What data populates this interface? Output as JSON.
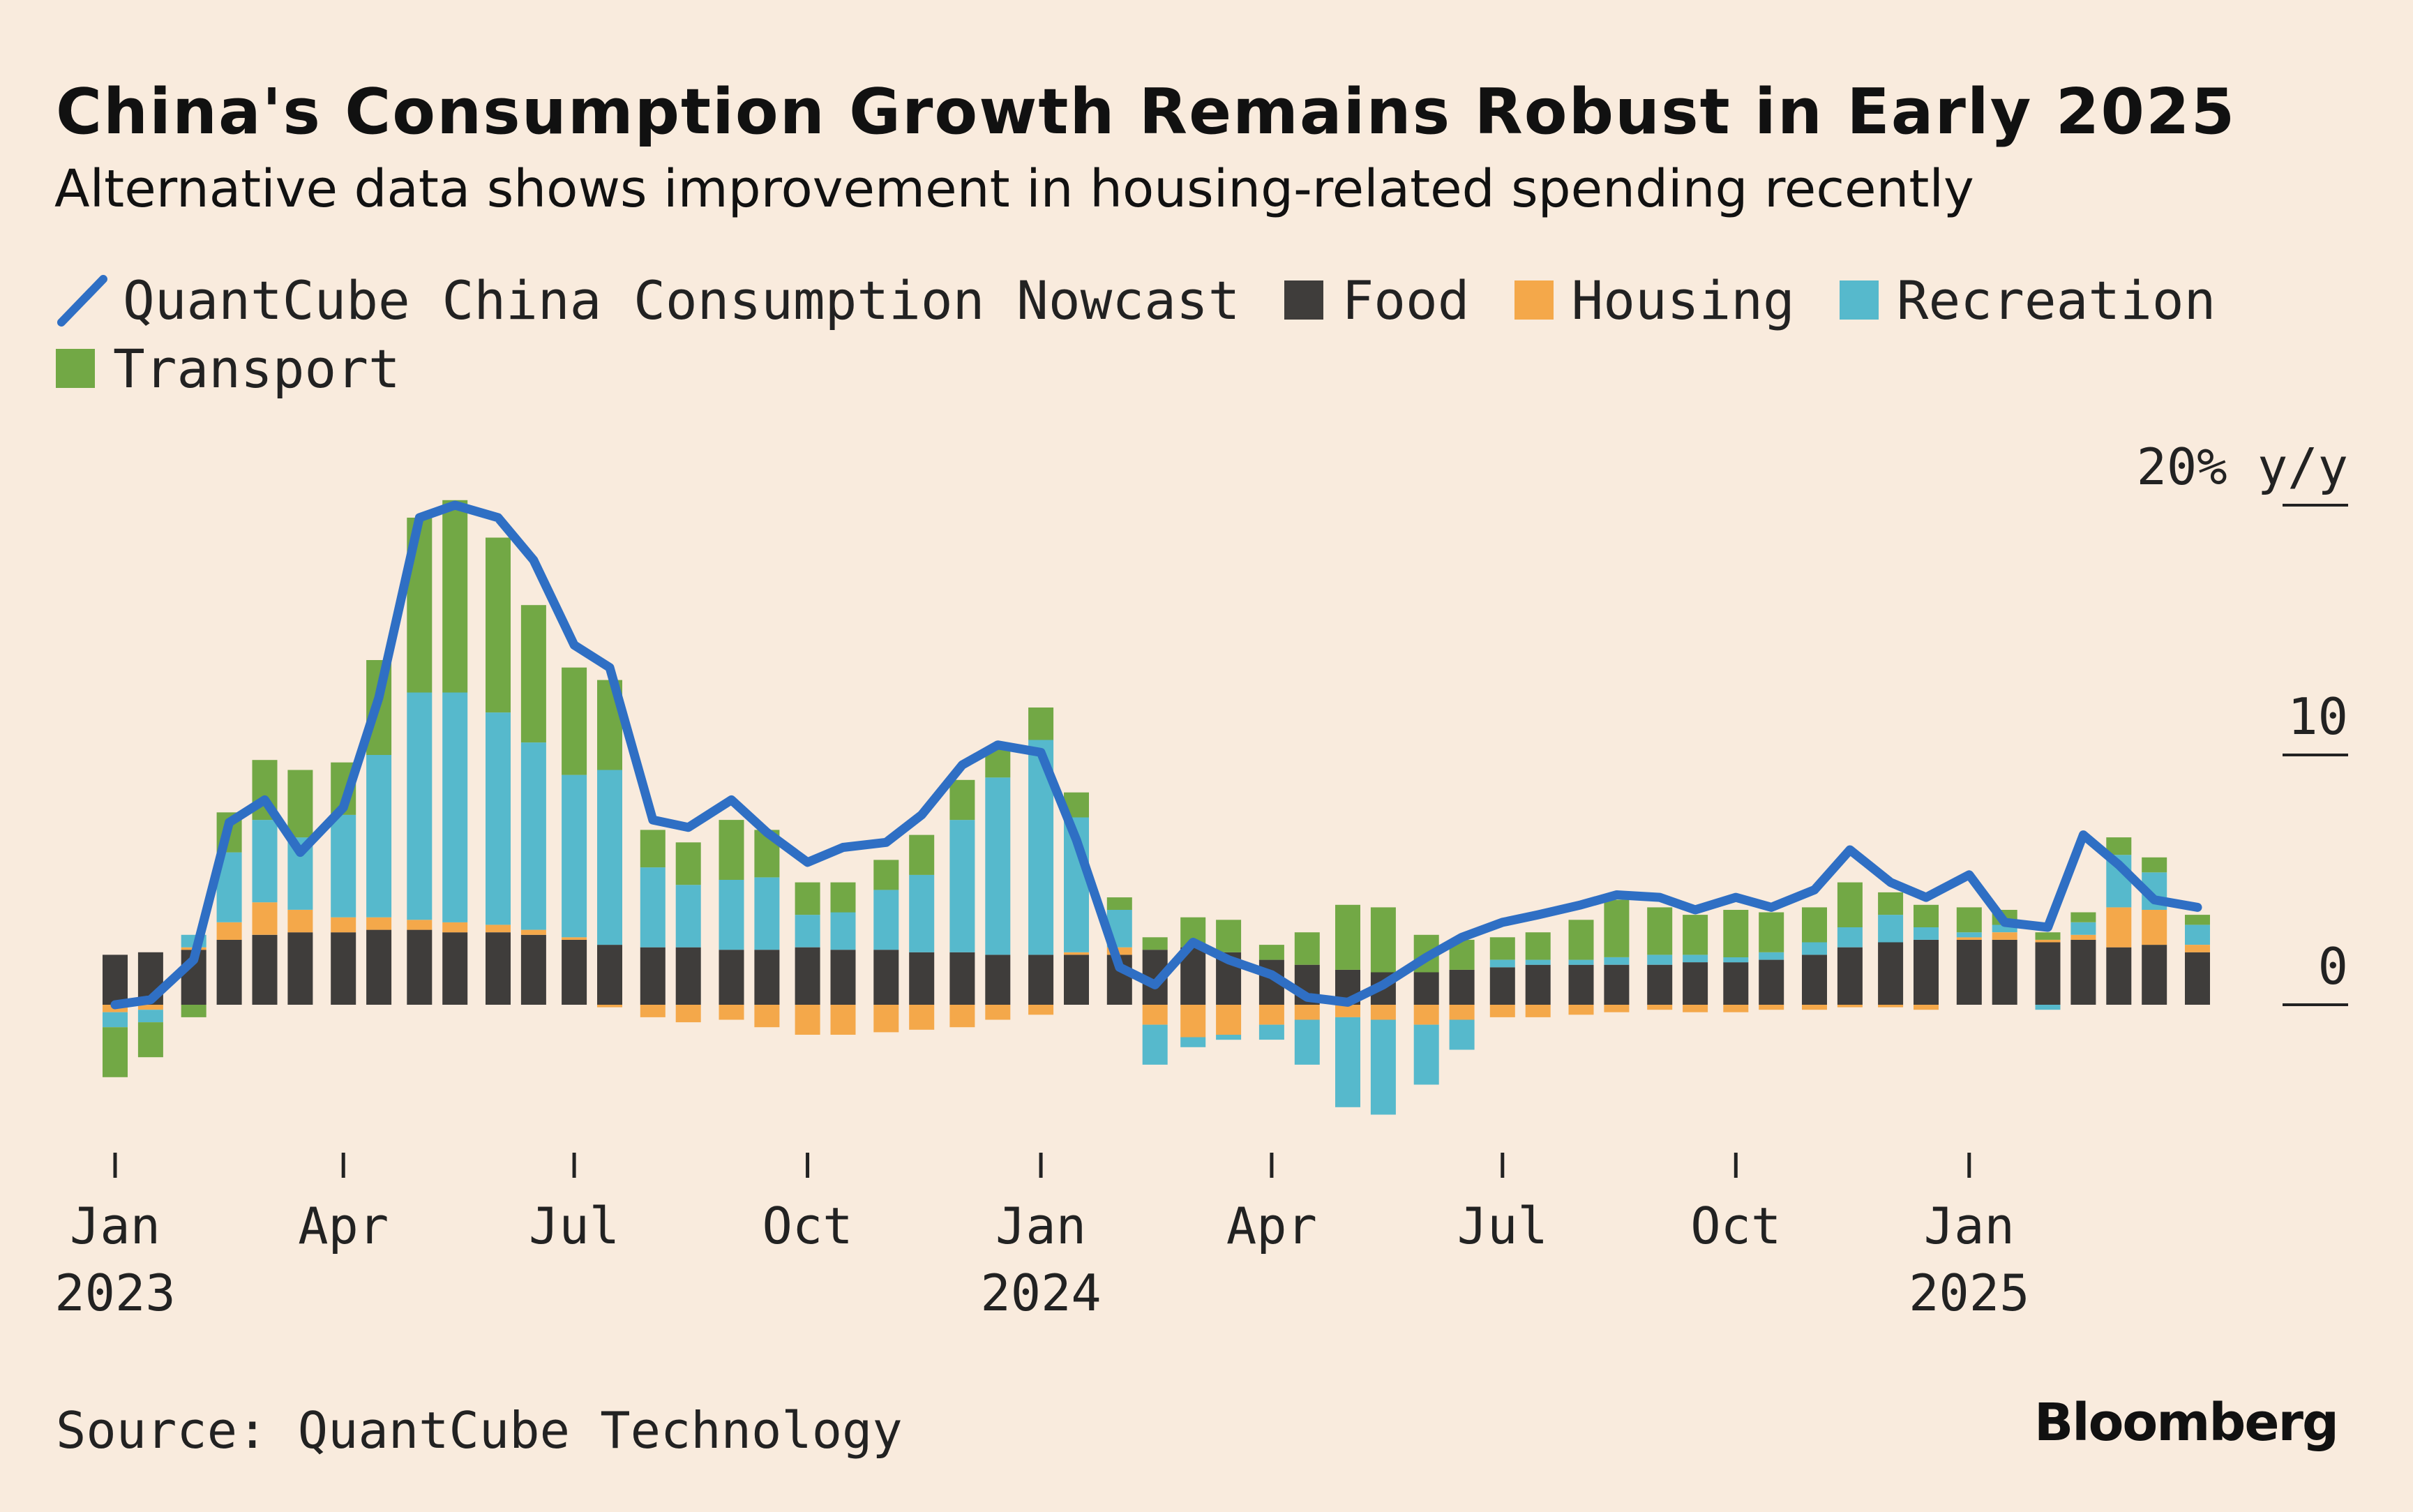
{
  "title": "China's Consumption Growth Remains Robust in Early 2025",
  "subtitle": "Alternative data shows improvement in housing-related spending recently",
  "source": "Source: QuantCube Technology",
  "brand": "Bloomberg",
  "legend": [
    {
      "label": "QuantCube China Consumption Nowcast",
      "kind": "line",
      "color": "#2f6fc4"
    },
    {
      "label": "Food",
      "kind": "box",
      "color": "#3f3d3b"
    },
    {
      "label": "Housing",
      "kind": "box",
      "color": "#f4a84a"
    },
    {
      "label": "Recreation",
      "kind": "box",
      "color": "#56b9cc"
    },
    {
      "label": "Transport",
      "kind": "box",
      "color": "#72a845"
    }
  ],
  "chart_data": {
    "type": "bar",
    "stacked": true,
    "xlabel": "",
    "ylabel": "20% y/y",
    "ylim": [
      -6,
      21
    ],
    "y_ticks": [
      {
        "value": 20,
        "label": "20% y/y"
      },
      {
        "value": 10,
        "label": "10"
      },
      {
        "value": 0,
        "label": "0"
      }
    ],
    "x_ticks": [
      {
        "date": "2023-01-01",
        "label": "Jan",
        "year": "2023"
      },
      {
        "date": "2023-04-01",
        "label": "Apr",
        "year": ""
      },
      {
        "date": "2023-07-01",
        "label": "Jul",
        "year": ""
      },
      {
        "date": "2023-10-01",
        "label": "Oct",
        "year": ""
      },
      {
        "date": "2024-01-01",
        "label": "Jan",
        "year": "2024"
      },
      {
        "date": "2024-04-01",
        "label": "Apr",
        "year": ""
      },
      {
        "date": "2024-07-01",
        "label": "Jul",
        "year": ""
      },
      {
        "date": "2024-10-01",
        "label": "Oct",
        "year": ""
      },
      {
        "date": "2025-01-01",
        "label": "Jan",
        "year": "2025"
      }
    ],
    "x": [
      "2023-01-01",
      "2023-01-15",
      "2023-02-01",
      "2023-02-15",
      "2023-03-01",
      "2023-03-15",
      "2023-04-01",
      "2023-04-15",
      "2023-05-01",
      "2023-05-15",
      "2023-06-01",
      "2023-06-15",
      "2023-07-01",
      "2023-07-15",
      "2023-08-01",
      "2023-08-15",
      "2023-09-01",
      "2023-09-15",
      "2023-10-01",
      "2023-10-15",
      "2023-11-01",
      "2023-11-15",
      "2023-12-01",
      "2023-12-15",
      "2024-01-01",
      "2024-01-15",
      "2024-02-01",
      "2024-02-15",
      "2024-03-01",
      "2024-03-15",
      "2024-04-01",
      "2024-04-15",
      "2024-05-01",
      "2024-05-15",
      "2024-06-01",
      "2024-06-15",
      "2024-07-01",
      "2024-07-15",
      "2024-08-01",
      "2024-08-15",
      "2024-09-01",
      "2024-09-15",
      "2024-10-01",
      "2024-10-15",
      "2024-11-01",
      "2024-11-15",
      "2024-12-01",
      "2024-12-15",
      "2025-01-01",
      "2025-01-15",
      "2025-02-01",
      "2025-02-15",
      "2025-03-01",
      "2025-03-15",
      "2025-04-01"
    ],
    "grid": false,
    "legend_position": "top-left",
    "series": [
      {
        "name": "Food",
        "color": "#3f3d3b",
        "values": [
          2.0,
          2.1,
          2.2,
          2.6,
          2.8,
          2.9,
          2.9,
          3.0,
          3.0,
          2.9,
          2.9,
          2.8,
          2.6,
          2.4,
          2.3,
          2.3,
          2.2,
          2.2,
          2.3,
          2.2,
          2.2,
          2.1,
          2.1,
          2.0,
          2.0,
          2.0,
          2.0,
          2.2,
          2.3,
          2.1,
          1.8,
          1.6,
          1.4,
          1.3,
          1.3,
          1.4,
          1.5,
          1.6,
          1.6,
          1.6,
          1.6,
          1.7,
          1.7,
          1.8,
          2.0,
          2.3,
          2.5,
          2.6,
          2.6,
          2.6,
          2.5,
          2.6,
          2.3,
          2.4,
          2.1
        ]
      },
      {
        "name": "Housing",
        "color": "#f4a84a",
        "values": [
          -0.3,
          -0.2,
          0.1,
          0.7,
          1.3,
          0.9,
          0.6,
          0.5,
          0.4,
          0.4,
          0.3,
          0.2,
          0.1,
          -0.1,
          -0.5,
          -0.7,
          -0.6,
          -0.9,
          -1.2,
          -1.2,
          -1.1,
          -1.0,
          -0.9,
          -0.6,
          -0.4,
          0.1,
          0.3,
          -0.8,
          -1.3,
          -1.2,
          -0.8,
          -0.6,
          -0.5,
          -0.6,
          -0.8,
          -0.6,
          -0.5,
          -0.5,
          -0.4,
          -0.3,
          -0.2,
          -0.3,
          -0.3,
          -0.2,
          -0.2,
          -0.1,
          -0.1,
          -0.2,
          0.1,
          0.3,
          0.1,
          0.2,
          1.6,
          1.4,
          0.3
        ]
      },
      {
        "name": "Recreation",
        "color": "#56b9cc",
        "values": [
          -0.6,
          -0.5,
          0.5,
          2.8,
          3.3,
          2.9,
          4.1,
          6.5,
          9.1,
          9.2,
          8.5,
          7.5,
          6.5,
          7.0,
          3.2,
          2.5,
          2.8,
          2.9,
          1.3,
          1.5,
          2.4,
          3.1,
          5.3,
          7.1,
          8.6,
          5.4,
          1.5,
          -1.6,
          -0.4,
          -0.2,
          -0.6,
          -1.8,
          -3.6,
          -3.8,
          -2.4,
          -1.2,
          0.3,
          0.2,
          0.2,
          0.3,
          0.4,
          0.3,
          0.2,
          0.3,
          0.5,
          0.8,
          1.1,
          0.5,
          0.2,
          0.3,
          -0.2,
          0.5,
          2.1,
          1.5,
          0.8
        ]
      },
      {
        "name": "Transport",
        "color": "#72a845",
        "values": [
          -2.0,
          -1.4,
          -0.5,
          1.6,
          2.4,
          2.7,
          2.1,
          3.8,
          7.0,
          7.7,
          7.0,
          5.5,
          4.3,
          3.6,
          1.5,
          1.7,
          2.4,
          1.9,
          1.3,
          1.2,
          1.2,
          1.6,
          1.6,
          1.2,
          1.3,
          1.0,
          0.5,
          0.5,
          1.2,
          1.3,
          0.6,
          1.3,
          2.6,
          2.6,
          1.5,
          1.2,
          0.9,
          1.1,
          1.6,
          2.3,
          1.9,
          1.6,
          1.9,
          1.6,
          1.4,
          1.8,
          0.9,
          0.9,
          1.0,
          0.6,
          0.3,
          0.4,
          0.7,
          0.6,
          0.4
        ]
      }
    ],
    "nowcast": {
      "name": "QuantCube China Consumption Nowcast",
      "color": "#2f6fc4",
      "values": [
        0.0,
        0.2,
        1.8,
        7.3,
        8.2,
        6.1,
        7.9,
        12.3,
        19.5,
        20.0,
        19.5,
        17.8,
        14.4,
        13.5,
        7.4,
        7.1,
        8.2,
        6.9,
        5.7,
        6.3,
        6.5,
        7.6,
        9.6,
        10.4,
        10.1,
        6.6,
        1.5,
        0.8,
        2.5,
        1.8,
        1.2,
        0.3,
        0.1,
        0.8,
        1.9,
        2.7,
        3.3,
        3.6,
        4.0,
        4.4,
        4.3,
        3.8,
        4.3,
        3.9,
        4.6,
        6.2,
        4.9,
        4.3,
        5.2,
        3.3,
        3.1,
        6.8,
        5.6,
        4.2,
        3.9
      ]
    }
  }
}
